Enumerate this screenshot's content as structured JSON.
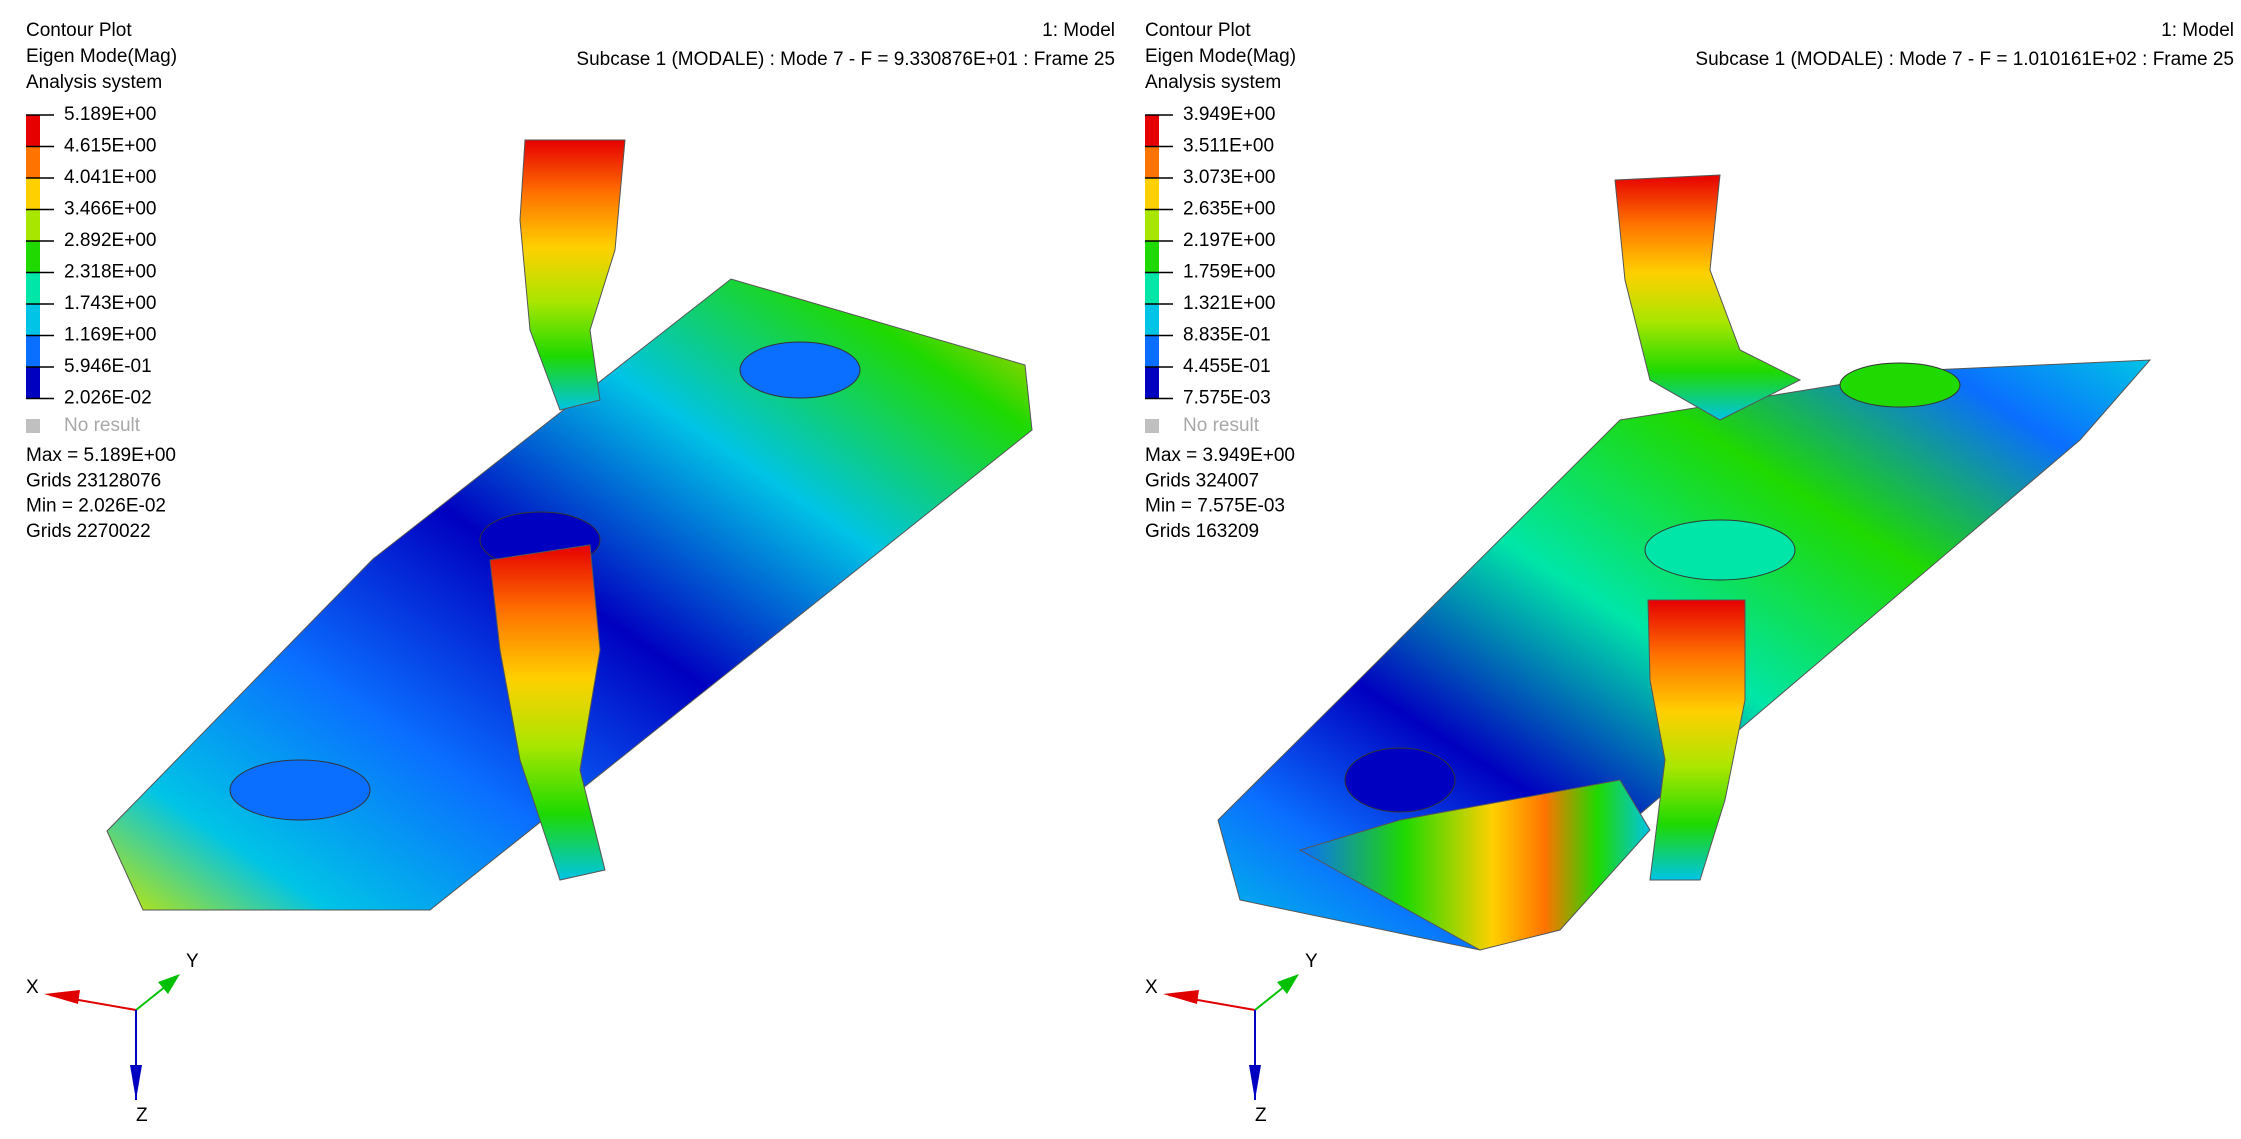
{
  "panels": [
    {
      "title_lines": [
        "Contour Plot",
        "Eigen Mode(Mag)",
        "Analysis system"
      ],
      "legend": {
        "levels": [
          "5.189E+00",
          "4.615E+00",
          "4.041E+00",
          "3.466E+00",
          "2.892E+00",
          "2.318E+00",
          "1.743E+00",
          "1.169E+00",
          "5.946E-01",
          "2.026E-02"
        ],
        "colors": [
          "#e60000",
          "#ff7300",
          "#ffd000",
          "#a8e600",
          "#1fd900",
          "#00e6a8",
          "#00c4e6",
          "#0a6eff",
          "#0000c0"
        ],
        "no_result": "No result"
      },
      "stats": [
        "Max = 5.189E+00",
        "Grids 23128076",
        "Min = 2.026E-02",
        "Grids 2270022"
      ],
      "model": "1: Model",
      "subcase": "Subcase 1 (MODALE) : Mode 7 - F = 9.330876E+01 : Frame 25",
      "triad": {
        "x": "X",
        "y": "Y",
        "z": "Z"
      }
    },
    {
      "title_lines": [
        "Contour Plot",
        "Eigen Mode(Mag)",
        "Analysis system"
      ],
      "legend": {
        "levels": [
          "3.949E+00",
          "3.511E+00",
          "3.073E+00",
          "2.635E+00",
          "2.197E+00",
          "1.759E+00",
          "1.321E+00",
          "8.835E-01",
          "4.455E-01",
          "7.575E-03"
        ],
        "colors": [
          "#e60000",
          "#ff7300",
          "#ffd000",
          "#a8e600",
          "#1fd900",
          "#00e6a8",
          "#00c4e6",
          "#0a6eff",
          "#0000c0"
        ],
        "no_result": "No result"
      },
      "stats": [
        "Max = 3.949E+00",
        "Grids 324007",
        "Min = 7.575E-03",
        "Grids 163209"
      ],
      "model": "1: Model",
      "subcase": "Subcase 1 (MODALE) : Mode 7 - F = 1.010161E+02 : Frame 25",
      "triad": {
        "x": "X",
        "y": "Y",
        "z": "Z"
      }
    }
  ]
}
